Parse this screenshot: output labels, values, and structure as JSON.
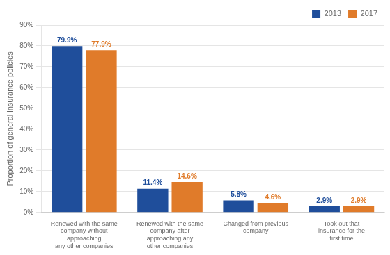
{
  "chart_data": {
    "type": "bar",
    "categories": [
      "Renewed with the same\ncompany without approaching\nany other companies",
      "Renewed with the same\ncompany after approaching any\nother companies",
      "Changed from previous company",
      "Took out that insurance for the\nfirst time"
    ],
    "series": [
      {
        "name": "2013",
        "color": "#1F4E9B",
        "values": [
          79.9,
          11.4,
          5.8,
          2.9
        ],
        "value_labels": [
          "79.9%",
          "11.4%",
          "5.8%",
          "2.9%"
        ]
      },
      {
        "name": "2017",
        "color": "#E07B2A",
        "values": [
          77.9,
          14.6,
          4.6,
          2.9
        ],
        "value_labels": [
          "77.9%",
          "14.6%",
          "4.6%",
          "2.9%"
        ]
      }
    ],
    "ylabel": "Proportion of general insurance policies",
    "ylim": [
      0,
      90
    ],
    "yticks": [
      {
        "value": 0,
        "label": "0%"
      },
      {
        "value": 10,
        "label": "10%"
      },
      {
        "value": 20,
        "label": "20%"
      },
      {
        "value": 30,
        "label": "30%"
      },
      {
        "value": 40,
        "label": "40%"
      },
      {
        "value": 50,
        "label": "50%"
      },
      {
        "value": 60,
        "label": "60%"
      },
      {
        "value": 70,
        "label": "70%"
      },
      {
        "value": 80,
        "label": "80%"
      },
      {
        "value": 90,
        "label": "90%"
      }
    ],
    "grid": true,
    "legend": "upper right",
    "data_labels": true
  }
}
